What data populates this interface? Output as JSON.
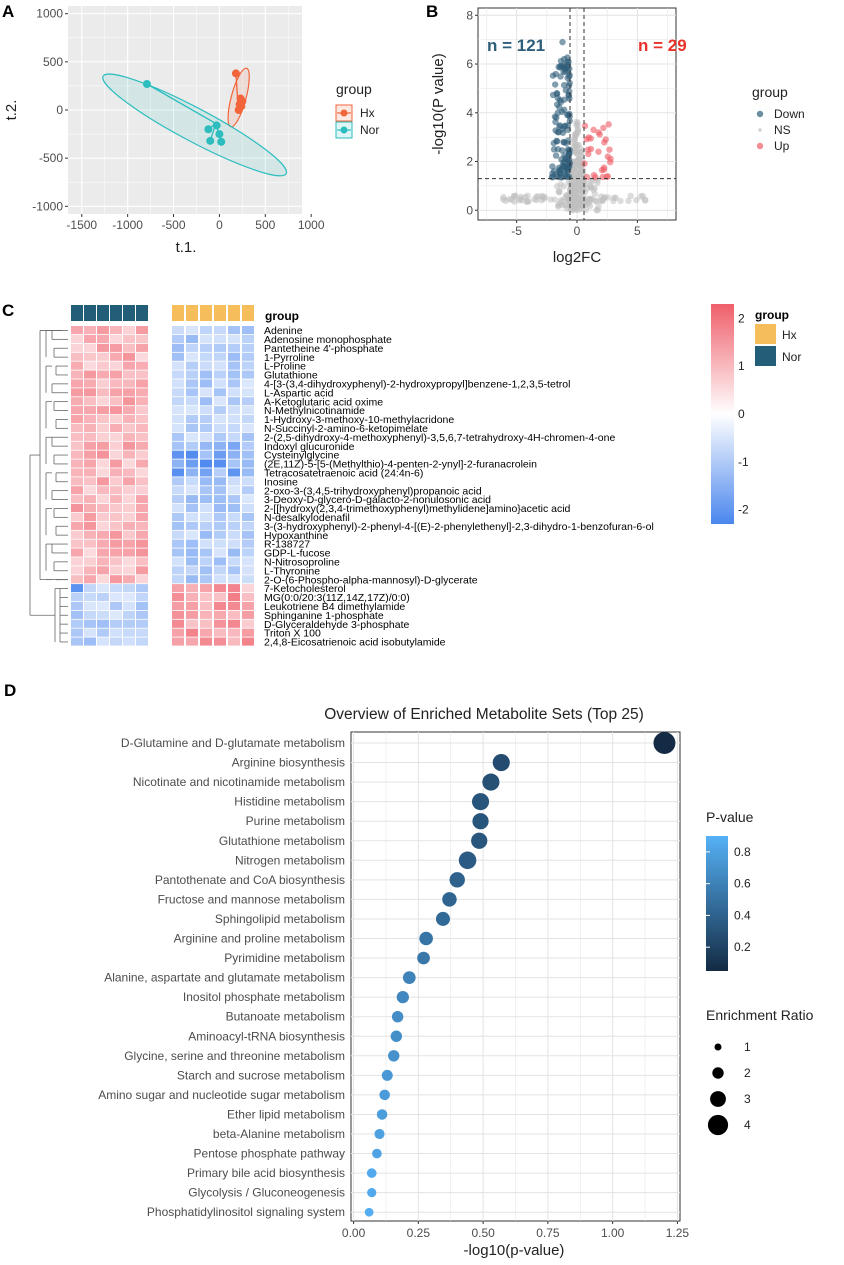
{
  "panels": {
    "a": {
      "label": "A",
      "title_group": "group"
    },
    "b": {
      "label": "B"
    },
    "c": {
      "label": "C"
    },
    "d": {
      "label": "D"
    }
  },
  "colors": {
    "hx": "#f2653a",
    "nor": "#2dbdbf",
    "down": "#2e5e7a",
    "ns": "#bfbfbf",
    "up": "#ef5c66",
    "heat_hx": "#f6be5a",
    "heat_nor": "#235e78"
  },
  "chart_data": [
    {
      "id": "pca",
      "type": "scatter",
      "xlabel": "t.1.",
      "ylabel": "t.2.",
      "xlim": [
        -1650,
        900
      ],
      "ylim": [
        -1080,
        1080
      ],
      "xticks": [
        -1500,
        -1000,
        -500,
        0,
        500,
        1000
      ],
      "yticks": [
        -1000,
        -500,
        0,
        500,
        1000
      ],
      "legend_title": "group",
      "series": [
        {
          "name": "Hx",
          "centroid": [
            200,
            90
          ],
          "points": [
            [
              180,
              380
            ],
            [
              230,
              120
            ],
            [
              250,
              90
            ],
            [
              240,
              40
            ],
            [
              210,
              0
            ],
            [
              220,
              60
            ]
          ],
          "ellipse": {
            "center": [
              210,
              130
            ],
            "semi_major": 330,
            "semi_minor": 80,
            "angle_deg": 75
          }
        },
        {
          "name": "Nor",
          "centroid": [
            -40,
            -140
          ],
          "points": [
            [
              -790,
              270
            ],
            [
              -120,
              -200
            ],
            [
              -100,
              -320
            ],
            [
              20,
              -330
            ],
            [
              -30,
              -160
            ],
            [
              0,
              -250
            ]
          ],
          "ellipse": {
            "center": [
              -270,
              -155
            ],
            "semi_major": 1130,
            "semi_minor": 180,
            "angle_deg": -28
          }
        }
      ]
    },
    {
      "id": "volcano",
      "type": "scatter",
      "xlabel": "log2FC",
      "ylabel": "-log10(P value)",
      "xlim": [
        -8.2,
        8.2
      ],
      "ylim": [
        -0.4,
        8.3
      ],
      "xticks": [
        -5,
        0,
        5
      ],
      "yticks": [
        0,
        2,
        4,
        6,
        8
      ],
      "thresholds": {
        "x": [
          -0.58,
          0.58
        ],
        "y": 1.3
      },
      "annotations": {
        "down_count": "n = 121",
        "up_count": "n = 29"
      },
      "legend_title": "group",
      "legend": [
        "Down",
        "NS",
        "Up"
      ]
    },
    {
      "id": "heatmap",
      "type": "heatmap",
      "legend_title": "group",
      "groups": [
        "Hx",
        "Nor"
      ],
      "scale_ticks": [
        2,
        1,
        0,
        -1,
        -2
      ],
      "metabolites": [
        "Adenine",
        "Adenosine monophosphate",
        "Pantetheine 4'-phosphate",
        "1-Pyrroline",
        "L-Proline",
        "Glutathione",
        "4-[3-(3,4-dihydroxyphenyl)-2-hydroxypropyl]benzene-1,2,3,5-tetrol",
        "L-Aspartic acid",
        "A-Ketoglutaric acid oxime",
        "N-Methylnicotinamide",
        "1-Hydroxy-3-methoxy-10-methylacridone",
        "N-Succinyl-2-amino-6-ketopimelate",
        "2-(2,5-dihydroxy-4-methoxyphenyl)-3,5,6,7-tetrahydroxy-4H-chromen-4-one",
        "Indoxyl glucuronide",
        "Cysteinylglycine",
        "(2E,11Z)-5-[5-(Methylthio)-4-penten-2-ynyl]-2-furanacrolein",
        "Tetracosatetraenoic acid (24:4n-6)",
        "Inosine",
        "2-oxo-3-(3,4,5-trihydroxyphenyl)propanoic acid",
        "3-Deoxy-D-glycero-D-galacto-2-nonulosonic acid",
        "2-[[hydroxy(2,3,4-trimethoxyphenyl)methylidene]amino}acetic acid",
        "N-desalkylodenafil",
        "3-(3-hydroxyphenyl)-2-phenyl-4-[(E)-2-phenylethenyl]-2,3-dihydro-1-benzofuran-6-ol",
        "Hypoxanthine",
        "R-138727",
        "GDP-L-fucose",
        "N-Nitrosoproline",
        "L-Thyronine",
        "2-O-(6-Phospho-alpha-mannosyl)-D-glycerate",
        "7-Ketocholesterol",
        "MG(0:0/20:3(11Z,14Z,17Z)/0:0)",
        "Leukotriene B4 dimethylamide",
        "Sphinganine 1-phosphate",
        "D-Glyceraldehyde 3-phosphate",
        "Triton X 100",
        "2,4,8-Eicosatrienoic acid isobutylamide"
      ]
    },
    {
      "id": "enrichment",
      "type": "scatter",
      "title": "Overview of Enriched Metabolite Sets (Top 25)",
      "xlabel": "-log10(p-value)",
      "xlim": [
        -0.01,
        1.26
      ],
      "xticks": [
        "0.00",
        "0.25",
        "0.50",
        "0.75",
        "1.00",
        "1.25"
      ],
      "legend_color_title": "P-value",
      "color_ticks": [
        "0.8",
        "0.6",
        "0.4",
        "0.2"
      ],
      "legend_size_title": "Enrichment Ratio",
      "size_ticks": [
        "1",
        "2",
        "3",
        "4"
      ],
      "sets": [
        "D-Glutamine and D-glutamate metabolism",
        "Arginine biosynthesis",
        "Nicotinate and nicotinamide metabolism",
        "Histidine metabolism",
        "Purine metabolism",
        "Glutathione metabolism",
        "Nitrogen metabolism",
        "Pantothenate and CoA biosynthesis",
        "Fructose and mannose metabolism",
        "Sphingolipid metabolism",
        "Arginine and proline metabolism",
        "Pyrimidine metabolism",
        "Alanine, aspartate and glutamate metabolism",
        "Inositol phosphate metabolism",
        "Butanoate metabolism",
        "Aminoacyl-tRNA biosynthesis",
        "Glycine, serine and threonine metabolism",
        "Starch and sucrose metabolism",
        "Amino sugar and nucleotide sugar metabolism",
        "Ether lipid metabolism",
        "beta-Alanine metabolism",
        "Pentose phosphate pathway",
        "Primary bile acid biosynthesis",
        "Glycolysis / Gluconeogenesis",
        "Phosphatidylinositol signaling system"
      ],
      "neg_log10_p": [
        1.2,
        0.57,
        0.53,
        0.49,
        0.49,
        0.485,
        0.44,
        0.4,
        0.37,
        0.345,
        0.28,
        0.27,
        0.215,
        0.19,
        0.17,
        0.165,
        0.155,
        0.13,
        0.12,
        0.11,
        0.1,
        0.09,
        0.07,
        0.07,
        0.06
      ],
      "enrichment_ratio": [
        4.4,
        3.3,
        3.3,
        3.3,
        3.1,
        3.1,
        3.4,
        2.9,
        2.7,
        2.6,
        2.5,
        2.3,
        2.3,
        2.2,
        2.0,
        2.0,
        2.0,
        1.9,
        1.8,
        1.8,
        1.7,
        1.6,
        1.6,
        1.5,
        1.4
      ]
    }
  ]
}
